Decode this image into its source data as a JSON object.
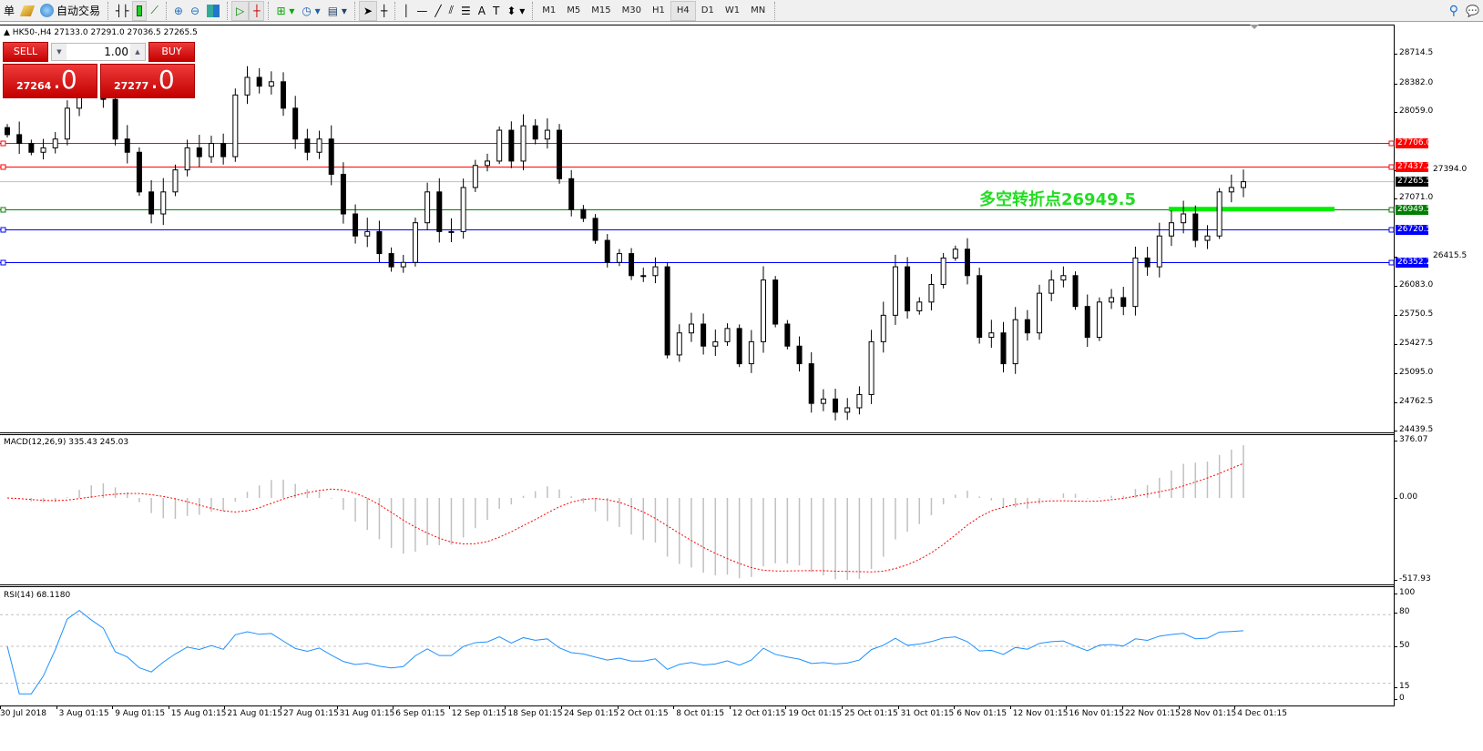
{
  "toolbar": {
    "orders_label": "单",
    "autotrade_label": "自动交易",
    "timeframes": [
      "M1",
      "M5",
      "M15",
      "M30",
      "H1",
      "H4",
      "D1",
      "W1",
      "MN"
    ],
    "active_timeframe": "H4"
  },
  "chart": {
    "header": "HK50-,H4  27133.0 27291.0 27036.5 27265.5",
    "symbol": "HK50-",
    "period": "H4",
    "ohlc": {
      "open": 27133.0,
      "high": 27291.0,
      "low": 27036.5,
      "close": 27265.5
    },
    "annotation": "多空转折点26949.5",
    "annotation_color": "#22dd22",
    "price_ticks": [
      "28714.5",
      "28382.0",
      "28059.0",
      "27394.0",
      "27071.0",
      "26415.5",
      "26083.0",
      "25750.5",
      "25427.5",
      "25095.0",
      "24762.5",
      "24439.5"
    ],
    "levels": [
      {
        "price": "27706.0",
        "color": "#ff0000"
      },
      {
        "price": "27437.2",
        "color": "#ff0000"
      },
      {
        "price": "26949.5",
        "color": "#008000"
      },
      {
        "price": "26720.5",
        "color": "#0000ff"
      },
      {
        "price": "26352.2",
        "color": "#0000ff"
      }
    ],
    "bid_price": "27265.5",
    "closes": [
      27800,
      27700,
      27600,
      27650,
      27750,
      28100,
      28400,
      28300,
      28200,
      27750,
      27600,
      27150,
      26900,
      27150,
      27400,
      27650,
      27550,
      27700,
      27550,
      28250,
      28450,
      28350,
      28400,
      28100,
      27750,
      27600,
      27750,
      27350,
      26900,
      26650,
      26700,
      26450,
      26300,
      26350,
      26800,
      27150,
      26700,
      26700,
      27200,
      27450,
      27500,
      27850,
      27500,
      27900,
      27750,
      27850,
      27300,
      26950,
      26850,
      26600,
      26350,
      26450,
      26200,
      26200,
      26300,
      25300,
      25550,
      25650,
      25400,
      25450,
      25600,
      25200,
      25450,
      26150,
      25650,
      25400,
      25200,
      24750,
      24800,
      24650,
      24700,
      24850,
      25450,
      25750,
      26300,
      25800,
      25900,
      26100,
      26400,
      26500,
      26200,
      25500,
      25550,
      25200,
      25700,
      25550,
      26000,
      26150,
      26200,
      25850,
      25500,
      25900,
      25950,
      25850,
      26400,
      26300,
      26650,
      26800,
      26900,
      26600,
      26650,
      27150,
      27200,
      27265.5
    ]
  },
  "trade_panel": {
    "sell_label": "SELL",
    "buy_label": "BUY",
    "lot": "1.00",
    "sell_price_main": "27264",
    "sell_price_frac": ".0",
    "buy_price_main": "27277",
    "buy_price_frac": ".0"
  },
  "macd": {
    "label": "MACD(12,26,9) 335.43 245.03",
    "ticks": [
      "376.07",
      "0.00",
      "-517.93"
    ],
    "signal_color": "#ff0000",
    "hist_color": "#c0c0c0"
  },
  "rsi": {
    "label": "RSI(14) 68.1180",
    "ticks": [
      "100",
      "80",
      "50",
      "15",
      "0"
    ],
    "line_color": "#1e90ff"
  },
  "time_axis": [
    "30 Jul 2018",
    "3 Aug 01:15",
    "9 Aug 01:15",
    "15 Aug 01:15",
    "21 Aug 01:15",
    "27 Aug 01:15",
    "31 Aug 01:15",
    "6 Sep 01:15",
    "12 Sep 01:15",
    "18 Sep 01:15",
    "24 Sep 01:15",
    "2 Oct 01:15",
    "8 Oct 01:15",
    "12 Oct 01:15",
    "19 Oct 01:15",
    "25 Oct 01:15",
    "31 Oct 01:15",
    "6 Nov 01:15",
    "12 Nov 01:15",
    "16 Nov 01:15",
    "22 Nov 01:15",
    "28 Nov 01:15",
    "4 Dec 01:15"
  ]
}
